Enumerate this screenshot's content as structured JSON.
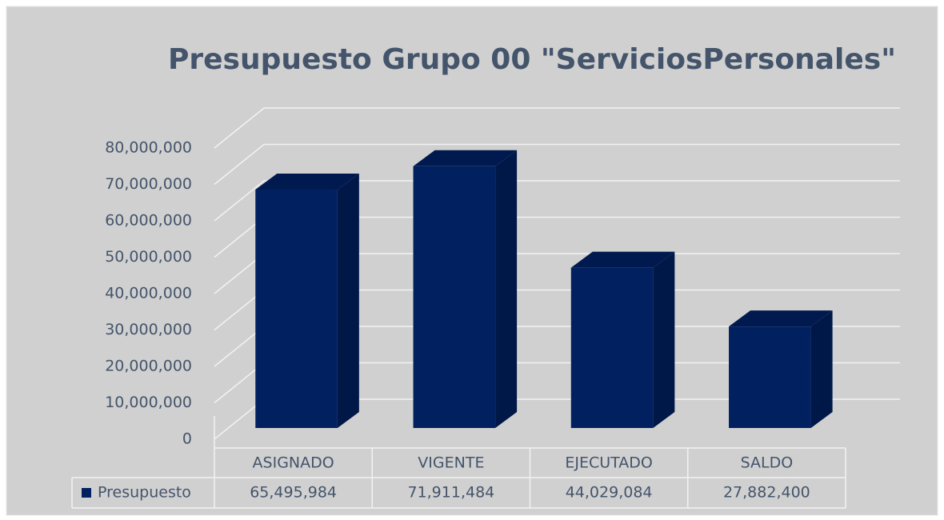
{
  "chart_data": {
    "type": "bar",
    "title": "Presupuesto Grupo 00 \"ServiciosPersonales\"",
    "categories": [
      "ASIGNADO",
      "VIGENTE",
      "EJECUTADO",
      "SALDO"
    ],
    "series": [
      {
        "name": "Presupuesto",
        "color": "#002060",
        "values": [
          65495984,
          71911484,
          44029084,
          27882400
        ],
        "value_labels": [
          "65,495,984",
          "71,911,484",
          "44,029,084",
          "27,882,400"
        ]
      }
    ],
    "ylim": [
      0,
      80000000
    ],
    "yticks": [
      0,
      {
        "value": 10000000,
        "label": "10,000,000"
      },
      {
        "value": 20000000,
        "label": "20,000,000"
      },
      {
        "value": 30000000,
        "label": "30,000,000"
      },
      {
        "value": 40000000,
        "label": "40,000,000"
      },
      {
        "value": 50000000,
        "label": "50,000,000"
      },
      {
        "value": 60000000,
        "label": "60,000,000"
      },
      {
        "value": 70000000,
        "label": "70,000,000"
      },
      {
        "value": 80000000,
        "label": "80,000,000"
      }
    ],
    "grid": true
  }
}
